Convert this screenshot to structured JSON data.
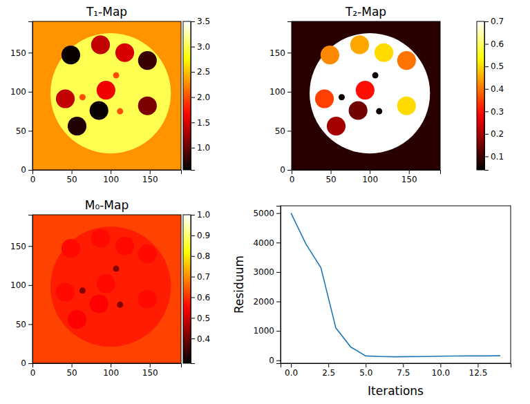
{
  "chart_data": [
    {
      "type": "heatmap",
      "title": "T₁-Map",
      "xlim": [
        0,
        190
      ],
      "ylim": [
        0,
        190
      ],
      "xticks": [
        0,
        50,
        100,
        150
      ],
      "yticks": [
        0,
        50,
        100,
        150
      ],
      "colorbar": {
        "range": [
          0.56,
          3.5
        ],
        "ticks": [
          {
            "value": 1,
            "label": "1.0"
          },
          1.5,
          {
            "value": 2,
            "label": "2.0"
          },
          2.5,
          {
            "value": 3,
            "label": "3.0"
          },
          3.5
        ]
      },
      "background": 2.3,
      "phantom": {
        "cx": 100,
        "cy": 98,
        "r": 77,
        "value": 3.0
      },
      "vials": [
        {
          "cx": 49,
          "cy": 147,
          "r": 12,
          "value": 0.6
        },
        {
          "cx": 87,
          "cy": 160,
          "r": 12,
          "value": 1.4
        },
        {
          "cx": 118,
          "cy": 150,
          "r": 12,
          "value": 1.5
        },
        {
          "cx": 147,
          "cy": 140,
          "r": 12,
          "value": 0.8
        },
        {
          "cx": 42,
          "cy": 91,
          "r": 12,
          "value": 1.4
        },
        {
          "cx": 94,
          "cy": 102,
          "r": 12,
          "value": 1.6
        },
        {
          "cx": 147,
          "cy": 82,
          "r": 12,
          "value": 1.1
        },
        {
          "cx": 85,
          "cy": 76,
          "r": 12,
          "value": 0.6
        },
        {
          "cx": 57,
          "cy": 56,
          "r": 12,
          "value": 0.7
        }
      ],
      "small_vials": [
        {
          "cx": 64,
          "cy": 93,
          "r": 4,
          "value": 2.0
        },
        {
          "cx": 107,
          "cy": 121,
          "r": 4,
          "value": 2.0
        },
        {
          "cx": 112,
          "cy": 75,
          "r": 4,
          "value": 2.0
        }
      ]
    },
    {
      "type": "heatmap",
      "title": "T₂-Map",
      "xlim": [
        0,
        190
      ],
      "ylim": [
        0,
        190
      ],
      "xticks": [
        0,
        50,
        100,
        150
      ],
      "yticks": [
        0,
        50,
        100,
        150
      ],
      "colorbar": {
        "range": [
          0.04,
          0.7
        ],
        "ticks": [
          0.1,
          0.2,
          0.3,
          0.4,
          0.5,
          0.6,
          0.7
        ]
      },
      "background": 0.08,
      "phantom": {
        "cx": 100,
        "cy": 98,
        "r": 77,
        "value": 0.7
      },
      "vials": [
        {
          "cx": 49,
          "cy": 147,
          "r": 12,
          "value": 0.42
        },
        {
          "cx": 87,
          "cy": 160,
          "r": 12,
          "value": 0.45
        },
        {
          "cx": 118,
          "cy": 150,
          "r": 12,
          "value": 0.5
        },
        {
          "cx": 147,
          "cy": 140,
          "r": 12,
          "value": 0.4
        },
        {
          "cx": 42,
          "cy": 91,
          "r": 12,
          "value": 0.35
        },
        {
          "cx": 94,
          "cy": 102,
          "r": 12,
          "value": 0.3
        },
        {
          "cx": 147,
          "cy": 82,
          "r": 12,
          "value": 0.5
        },
        {
          "cx": 85,
          "cy": 76,
          "r": 12,
          "value": 0.15
        },
        {
          "cx": 57,
          "cy": 56,
          "r": 12,
          "value": 0.2
        }
      ],
      "small_vials": [
        {
          "cx": 64,
          "cy": 93,
          "r": 4,
          "value": 0.05
        },
        {
          "cx": 107,
          "cy": 121,
          "r": 4,
          "value": 0.05
        },
        {
          "cx": 112,
          "cy": 75,
          "r": 4,
          "value": 0.05
        }
      ]
    },
    {
      "type": "heatmap",
      "title": "M₀-Map",
      "xlim": [
        0,
        190
      ],
      "ylim": [
        0,
        190
      ],
      "xticks": [
        0,
        50,
        100,
        150
      ],
      "yticks": [
        0,
        50,
        100,
        150
      ],
      "colorbar": {
        "range": [
          0.28,
          1.0
        ],
        "ticks": [
          0.4,
          0.5,
          0.6,
          0.7,
          0.8,
          0.9,
          {
            "value": 1,
            "label": "1.0"
          }
        ]
      },
      "background": 0.62,
      "phantom": {
        "cx": 100,
        "cy": 98,
        "r": 77,
        "value": 0.58
      },
      "vials": [
        {
          "cx": 49,
          "cy": 147,
          "r": 12,
          "value": 0.56
        },
        {
          "cx": 87,
          "cy": 160,
          "r": 12,
          "value": 0.56
        },
        {
          "cx": 118,
          "cy": 150,
          "r": 12,
          "value": 0.56
        },
        {
          "cx": 147,
          "cy": 140,
          "r": 12,
          "value": 0.56
        },
        {
          "cx": 42,
          "cy": 91,
          "r": 12,
          "value": 0.56
        },
        {
          "cx": 94,
          "cy": 102,
          "r": 12,
          "value": 0.56
        },
        {
          "cx": 147,
          "cy": 82,
          "r": 12,
          "value": 0.56
        },
        {
          "cx": 85,
          "cy": 76,
          "r": 12,
          "value": 0.55
        },
        {
          "cx": 57,
          "cy": 56,
          "r": 12,
          "value": 0.55
        }
      ],
      "small_vials": [
        {
          "cx": 64,
          "cy": 93,
          "r": 4,
          "value": 0.42
        },
        {
          "cx": 107,
          "cy": 121,
          "r": 4,
          "value": 0.42
        },
        {
          "cx": 112,
          "cy": 75,
          "r": 4,
          "value": 0.42
        }
      ]
    },
    {
      "type": "line",
      "xlabel": "Iterations",
      "ylabel": "Residuum",
      "color": "#1f77b4",
      "x": [
        0,
        1,
        2,
        3,
        4,
        5,
        6,
        7,
        8,
        9,
        10,
        11,
        12,
        13,
        14
      ],
      "values": [
        5000,
        3950,
        3150,
        1100,
        450,
        150,
        130,
        120,
        125,
        130,
        140,
        145,
        150,
        150,
        155
      ],
      "xlim": [
        -0.7,
        14.7
      ],
      "ylim": [
        -100,
        5250
      ],
      "xticks": [
        {
          "value": 0,
          "label": "0.0"
        },
        {
          "value": 2.5,
          "label": "2.5"
        },
        {
          "value": 5,
          "label": "5.0"
        },
        {
          "value": 7.5,
          "label": "7.5"
        },
        {
          "value": 10,
          "label": "10.0"
        },
        {
          "value": 12.5,
          "label": "12.5"
        }
      ],
      "yticks": [
        0,
        1000,
        2000,
        3000,
        4000,
        5000
      ]
    }
  ]
}
